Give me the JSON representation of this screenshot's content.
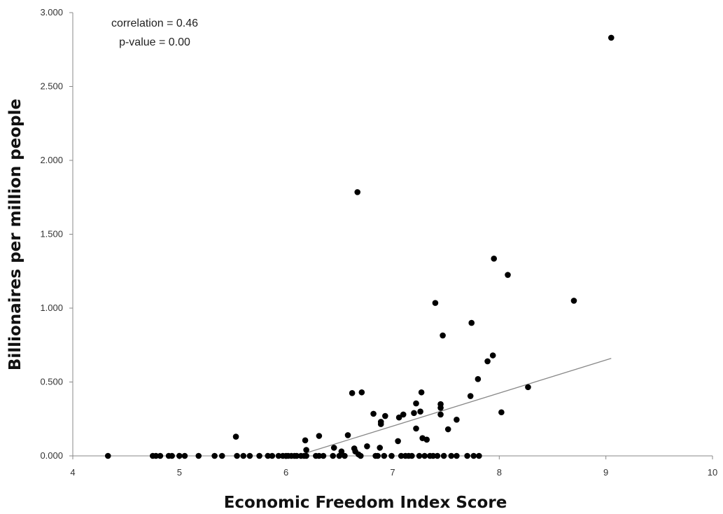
{
  "chart_data": {
    "type": "scatter",
    "xlabel": "Economic Freedom Index Score",
    "ylabel": "Billionaires per million people",
    "xlim": [
      4,
      10
    ],
    "ylim": [
      0,
      3.0
    ],
    "xticks": [
      "4",
      "5",
      "6",
      "7",
      "8",
      "9",
      "10"
    ],
    "yticks": [
      "0.000",
      "0.500",
      "1.000",
      "1.500",
      "2.000",
      "2.500",
      "3.000"
    ],
    "annotations": {
      "correlation": "correlation = 0.46",
      "pvalue": "p-value = 0.00"
    },
    "marker_color": "#000000",
    "trendline": {
      "x": [
        6.1,
        9.05
      ],
      "y": [
        0.0,
        0.66
      ],
      "color": "#888888"
    },
    "grid": false,
    "points": [
      [
        4.33,
        0.0
      ],
      [
        4.75,
        0.0
      ],
      [
        4.78,
        0.0
      ],
      [
        4.82,
        0.0
      ],
      [
        4.9,
        0.0
      ],
      [
        4.93,
        0.0
      ],
      [
        5.0,
        0.0
      ],
      [
        5.05,
        0.0
      ],
      [
        5.18,
        0.0
      ],
      [
        5.33,
        0.0
      ],
      [
        5.4,
        0.0
      ],
      [
        5.53,
        0.13
      ],
      [
        5.54,
        0.0
      ],
      [
        5.6,
        0.0
      ],
      [
        5.66,
        0.0
      ],
      [
        5.75,
        0.0
      ],
      [
        5.83,
        0.0
      ],
      [
        5.87,
        0.0
      ],
      [
        5.93,
        0.0
      ],
      [
        5.97,
        0.0
      ],
      [
        6.0,
        0.0
      ],
      [
        6.02,
        0.0
      ],
      [
        6.05,
        0.0
      ],
      [
        6.08,
        0.0
      ],
      [
        6.1,
        0.0
      ],
      [
        6.14,
        0.0
      ],
      [
        6.17,
        0.0
      ],
      [
        6.19,
        0.0
      ],
      [
        6.18,
        0.105
      ],
      [
        6.19,
        0.04
      ],
      [
        6.28,
        0.0
      ],
      [
        6.31,
        0.0
      ],
      [
        6.31,
        0.135
      ],
      [
        6.35,
        0.0
      ],
      [
        6.44,
        0.0
      ],
      [
        6.45,
        0.055
      ],
      [
        6.5,
        0.0
      ],
      [
        6.52,
        0.03
      ],
      [
        6.55,
        0.0
      ],
      [
        6.58,
        0.14
      ],
      [
        6.62,
        0.425
      ],
      [
        6.64,
        0.05
      ],
      [
        6.65,
        0.03
      ],
      [
        6.67,
        1.785
      ],
      [
        6.68,
        0.01
      ],
      [
        6.7,
        0.0
      ],
      [
        6.71,
        0.43
      ],
      [
        6.76,
        0.065
      ],
      [
        6.82,
        0.285
      ],
      [
        6.84,
        0.0
      ],
      [
        6.86,
        0.0
      ],
      [
        6.88,
        0.055
      ],
      [
        6.89,
        0.23
      ],
      [
        6.89,
        0.215
      ],
      [
        6.92,
        0.0
      ],
      [
        6.93,
        0.27
      ],
      [
        6.99,
        0.0
      ],
      [
        7.05,
        0.1
      ],
      [
        7.06,
        0.26
      ],
      [
        7.08,
        0.0
      ],
      [
        7.1,
        0.28
      ],
      [
        7.12,
        0.0
      ],
      [
        7.15,
        0.0
      ],
      [
        7.18,
        0.0
      ],
      [
        7.2,
        0.29
      ],
      [
        7.22,
        0.355
      ],
      [
        7.22,
        0.185
      ],
      [
        7.25,
        0.0
      ],
      [
        7.26,
        0.3
      ],
      [
        7.27,
        0.43
      ],
      [
        7.28,
        0.12
      ],
      [
        7.3,
        0.0
      ],
      [
        7.32,
        0.11
      ],
      [
        7.35,
        0.0
      ],
      [
        7.38,
        0.0
      ],
      [
        7.4,
        1.035
      ],
      [
        7.42,
        0.0
      ],
      [
        7.45,
        0.35
      ],
      [
        7.45,
        0.325
      ],
      [
        7.45,
        0.28
      ],
      [
        7.47,
        0.815
      ],
      [
        7.48,
        0.0
      ],
      [
        7.52,
        0.18
      ],
      [
        7.55,
        0.0
      ],
      [
        7.6,
        0.245
      ],
      [
        7.6,
        0.0
      ],
      [
        7.7,
        0.0
      ],
      [
        7.73,
        0.405
      ],
      [
        7.74,
        0.9
      ],
      [
        7.76,
        0.0
      ],
      [
        7.8,
        0.52
      ],
      [
        7.81,
        0.0
      ],
      [
        7.89,
        0.64
      ],
      [
        7.94,
        0.68
      ],
      [
        7.95,
        1.335
      ],
      [
        8.02,
        0.295
      ],
      [
        8.08,
        1.225
      ],
      [
        8.27,
        0.465
      ],
      [
        8.7,
        1.05
      ],
      [
        9.05,
        2.83
      ]
    ]
  }
}
